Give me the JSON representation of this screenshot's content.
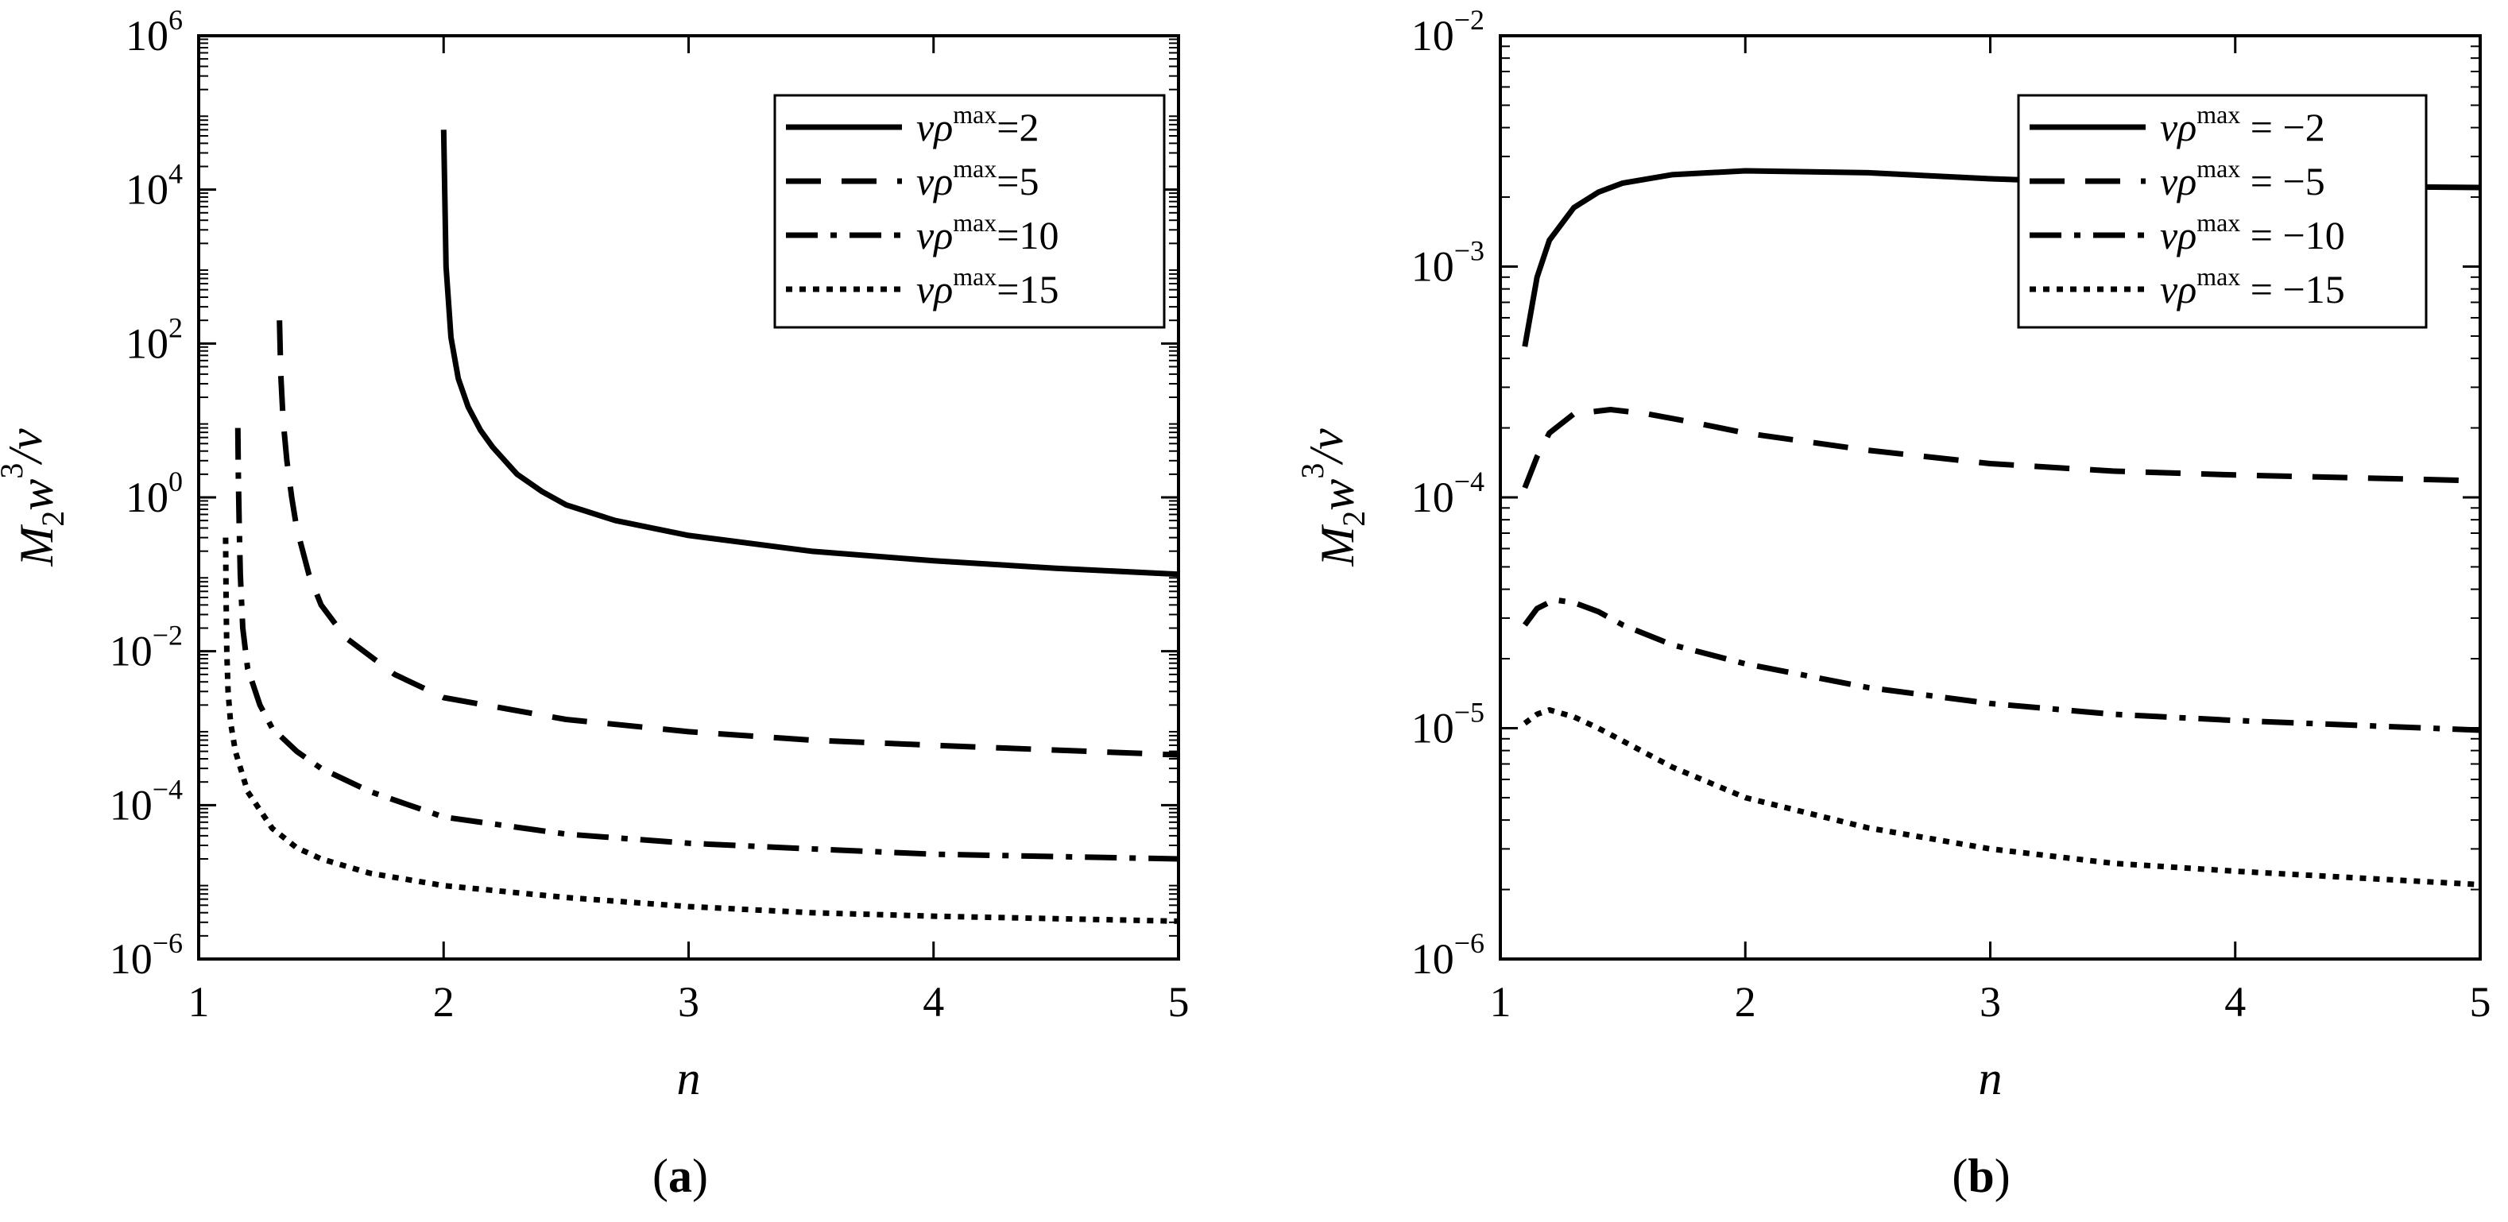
{
  "figure": {
    "panels": [
      {
        "letter": "a",
        "open": "(",
        "close": ")"
      },
      {
        "letter": "b",
        "open": "(",
        "close": ")"
      }
    ]
  },
  "chart_data": [
    {
      "type": "line",
      "panel": "(a)",
      "xlabel": "n",
      "ylabel": "M_2 w^3 / v",
      "yscale": "log",
      "xlim": [
        1,
        5
      ],
      "ylim": [
        1e-06,
        1000000.0
      ],
      "xticks": [
        "1",
        "2",
        "3",
        "4",
        "5"
      ],
      "yticks": [
        {
          "base": "10",
          "exp": "−6",
          "value": 1e-06
        },
        {
          "base": "10",
          "exp": "−4",
          "value": 0.0001
        },
        {
          "base": "10",
          "exp": "−2",
          "value": 0.01
        },
        {
          "base": "10",
          "exp": "0",
          "value": 1
        },
        {
          "base": "10",
          "exp": "2",
          "value": 100
        },
        {
          "base": "10",
          "exp": "4",
          "value": 10000
        },
        {
          "base": "10",
          "exp": "6",
          "value": 1000000
        }
      ],
      "legend_position": "top-right",
      "series": [
        {
          "name": "vρmax=2",
          "legend_pre": "vρ",
          "legend_sup": "max",
          "legend_post": "=2",
          "style": "solid",
          "x": [
            2.0,
            2.01,
            2.03,
            2.06,
            2.1,
            2.15,
            2.2,
            2.3,
            2.4,
            2.5,
            2.7,
            3.0,
            3.5,
            4.0,
            4.5,
            5.0
          ],
          "y": [
            60000,
            1000,
            120,
            35,
            15,
            7.5,
            4.5,
            2.0,
            1.2,
            0.8,
            0.5,
            0.32,
            0.2,
            0.15,
            0.12,
            0.1
          ]
        },
        {
          "name": "vρmax=5",
          "legend_pre": "vρ",
          "legend_sup": "max",
          "legend_post": "=5",
          "style": "dashed",
          "x": [
            1.33,
            1.335,
            1.345,
            1.36,
            1.38,
            1.4,
            1.45,
            1.5,
            1.6,
            1.8,
            2.0,
            2.5,
            3.0,
            3.5,
            4.0,
            5.0
          ],
          "y": [
            200,
            40,
            10,
            3,
            1.0,
            0.4,
            0.1,
            0.04,
            0.015,
            0.005,
            0.0025,
            0.0013,
            0.0009,
            0.0007,
            0.0006,
            0.00045
          ]
        },
        {
          "name": "vρmax=10",
          "legend_pre": "vρ",
          "legend_sup": "max",
          "legend_post": "=10",
          "style": "dashdot",
          "x": [
            1.16,
            1.162,
            1.165,
            1.17,
            1.18,
            1.2,
            1.25,
            1.3,
            1.4,
            1.5,
            1.7,
            2.0,
            2.5,
            3.0,
            3.5,
            4.0,
            5.0
          ],
          "y": [
            8,
            2,
            0.5,
            0.1,
            0.02,
            0.006,
            0.002,
            0.001,
            0.0005,
            0.0003,
            0.00015,
            7e-05,
            4.2e-05,
            3.2e-05,
            2.7e-05,
            2.3e-05,
            2e-05
          ]
        },
        {
          "name": "vρmax=15",
          "legend_pre": "vρ",
          "legend_sup": "max",
          "legend_post": "=15",
          "style": "dotted",
          "x": [
            1.11,
            1.112,
            1.115,
            1.12,
            1.13,
            1.15,
            1.2,
            1.3,
            1.4,
            1.5,
            1.7,
            2.0,
            2.5,
            3.0,
            3.5,
            4.0,
            5.0
          ],
          "y": [
            0.3,
            0.05,
            0.01,
            0.003,
            0.0012,
            0.0005,
            0.00015,
            5e-05,
            2.8e-05,
            2e-05,
            1.3e-05,
            9e-06,
            6.3e-06,
            4.8e-06,
            4e-06,
            3.6e-06,
            3.1e-06
          ]
        }
      ]
    },
    {
      "type": "line",
      "panel": "(b)",
      "xlabel": "n",
      "ylabel": "M_2 w^3 / v",
      "yscale": "log",
      "xlim": [
        1,
        5
      ],
      "ylim": [
        1e-06,
        0.01
      ],
      "xticks": [
        "1",
        "2",
        "3",
        "4",
        "5"
      ],
      "yticks": [
        {
          "base": "10",
          "exp": "−6",
          "value": 1e-06
        },
        {
          "base": "10",
          "exp": "−5",
          "value": 1e-05
        },
        {
          "base": "10",
          "exp": "−4",
          "value": 0.0001
        },
        {
          "base": "10",
          "exp": "−3",
          "value": 0.001
        },
        {
          "base": "10",
          "exp": "−2",
          "value": 0.01
        }
      ],
      "legend_position": "top-right",
      "series": [
        {
          "name": "vρmax = −2",
          "legend_pre": "vρ",
          "legend_sup": "max",
          "legend_post": " = −2",
          "style": "solid",
          "x": [
            1.1,
            1.15,
            1.2,
            1.3,
            1.4,
            1.5,
            1.7,
            2.0,
            2.5,
            3.0,
            3.5,
            4.0,
            5.0
          ],
          "y": [
            0.00045,
            0.0009,
            0.0013,
            0.0018,
            0.0021,
            0.0023,
            0.0025,
            0.0026,
            0.00255,
            0.0024,
            0.0023,
            0.00225,
            0.0022
          ]
        },
        {
          "name": "vρmax = −5",
          "legend_pre": "vρ",
          "legend_sup": "max",
          "legend_post": " = −5",
          "style": "dashed",
          "x": [
            1.1,
            1.15,
            1.2,
            1.3,
            1.45,
            1.6,
            1.8,
            2.0,
            2.5,
            3.0,
            3.5,
            4.0,
            5.0
          ],
          "y": [
            0.00011,
            0.00015,
            0.00019,
            0.00023,
            0.00024,
            0.00023,
            0.00021,
            0.00019,
            0.00016,
            0.00014,
            0.00013,
            0.000125,
            0.000118
          ]
        },
        {
          "name": "vρmax = −10",
          "legend_pre": "vρ",
          "legend_sup": "max",
          "legend_post": " = −10",
          "style": "dashdot",
          "x": [
            1.1,
            1.15,
            1.22,
            1.3,
            1.4,
            1.5,
            1.7,
            2.0,
            2.5,
            3.0,
            3.5,
            4.0,
            5.0
          ],
          "y": [
            2.8e-05,
            3.3e-05,
            3.6e-05,
            3.5e-05,
            3.2e-05,
            2.8e-05,
            2.3e-05,
            1.9e-05,
            1.5e-05,
            1.28e-05,
            1.15e-05,
            1.08e-05,
            9.8e-06
          ]
        },
        {
          "name": "vρmax = −15",
          "legend_pre": "vρ",
          "legend_sup": "max",
          "legend_post": " = −15",
          "style": "dotted",
          "x": [
            1.1,
            1.15,
            1.2,
            1.3,
            1.4,
            1.5,
            1.7,
            2.0,
            2.5,
            3.0,
            3.5,
            4.0,
            5.0
          ],
          "y": [
            1.05e-05,
            1.15e-05,
            1.2e-05,
            1.12e-05,
            1e-05,
            8.8e-06,
            6.8e-06,
            5e-06,
            3.7e-06,
            3e-06,
            2.6e-06,
            2.4e-06,
            2.1e-06
          ]
        }
      ]
    }
  ]
}
